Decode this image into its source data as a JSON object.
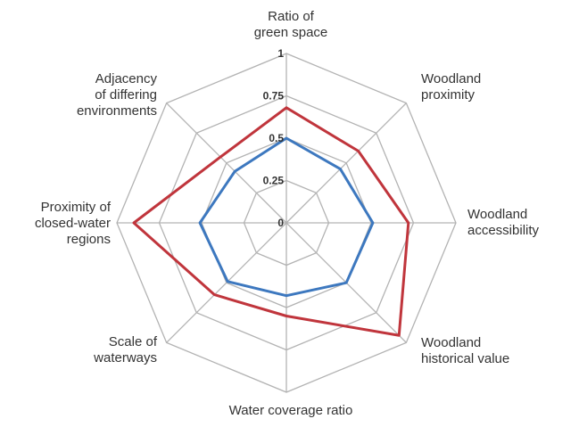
{
  "colors": {
    "grid": "#b3b3b3",
    "series_outer": "#c0353c",
    "series_inner": "#3d78bf"
  },
  "chart_data": {
    "type": "radar",
    "title": "",
    "axes": [
      "Ratio of\ngreen space",
      "Woodland\nproximity",
      "Woodland\naccessibility",
      "Woodland\nhistorical value",
      "Water coverage ratio",
      "Scale of\nwaterways",
      "Proximity of\nclosed-water\nregions",
      "Adjacency\nof differing\nenvironments"
    ],
    "ticks": [
      "0",
      "0.25",
      "0.5",
      "0.75",
      "1"
    ],
    "range": [
      0,
      1
    ],
    "grid": true,
    "legend": "none",
    "series": [
      {
        "color": "#c0353c",
        "values": [
          0.68,
          0.6,
          0.72,
          0.94,
          0.55,
          0.6,
          0.9,
          0.55
        ]
      },
      {
        "color": "#3d78bf",
        "values": [
          0.5,
          0.45,
          0.51,
          0.5,
          0.43,
          0.49,
          0.51,
          0.43
        ]
      }
    ]
  }
}
